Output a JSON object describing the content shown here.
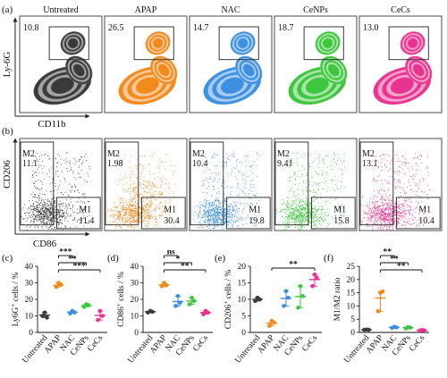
{
  "groups": [
    "Untreated",
    "APAP",
    "NAC",
    "CeNPs",
    "CeCs"
  ],
  "colors": {
    "Untreated": "#3a3a3a",
    "APAP": "#f28a1c",
    "NAC": "#3d8fe0",
    "CeNPs": "#3fc63f",
    "CeCs": "#e8338f"
  },
  "panel_a": {
    "label": "(a)",
    "y_axis_label": "Ly-6G",
    "x_axis_label": "CD11b",
    "gate_percent": [
      "10.8",
      "26.5",
      "14.7",
      "18.7",
      "13.0"
    ]
  },
  "panel_b": {
    "label": "(b)",
    "y_axis_label": "CD206",
    "x_axis_label": "CD86",
    "gate_m2_name": "M2",
    "gate_m1_name": "M1",
    "m2_values": [
      "11.1",
      "1.98",
      "10.4",
      "9.41",
      "13.1"
    ],
    "m1_values": [
      "11.4",
      "30.4",
      "19.8",
      "15.8",
      "10.4"
    ]
  },
  "chart_data": [
    {
      "type": "scatter",
      "panel": "(c)",
      "ylabel": "Ly6G+ cells / %",
      "ylim": [
        0,
        40
      ],
      "yticks": [
        "0",
        "10",
        "20",
        "30",
        "40"
      ],
      "categories": [
        "Untreated",
        "APAP",
        "NAC",
        "CeNPs",
        "CeCs"
      ],
      "points": [
        [
          10,
          12,
          9
        ],
        [
          27.5,
          30,
          29
        ],
        [
          11.5,
          13,
          12
        ],
        [
          15.5,
          17,
          16.5
        ],
        [
          7.5,
          13,
          10
        ]
      ],
      "means": [
        10.5,
        28.5,
        12.3,
        16.2,
        10.3
      ],
      "sig": [
        {
          "from": 1,
          "to": 2,
          "label": "***"
        },
        {
          "from": 1,
          "to": 3,
          "label": "**"
        },
        {
          "from": 1,
          "to": 4,
          "label": "***"
        }
      ]
    },
    {
      "type": "scatter",
      "panel": "(d)",
      "ylabel": "CD86+ cells / %",
      "ylim": [
        0,
        40
      ],
      "yticks": [
        "0",
        "10",
        "20",
        "30",
        "40"
      ],
      "categories": [
        "Untreated",
        "APAP",
        "NAC",
        "CeNPs",
        "CeCs"
      ],
      "points": [
        [
          12,
          13,
          12.5
        ],
        [
          28,
          30,
          28.5
        ],
        [
          16,
          22,
          18
        ],
        [
          17,
          21,
          19
        ],
        [
          11,
          13,
          12
        ]
      ],
      "means": [
        12.5,
        28.8,
        18.7,
        19,
        12
      ],
      "sig": [
        {
          "from": 1,
          "to": 2,
          "label": "ns"
        },
        {
          "from": 1,
          "to": 3,
          "label": "*"
        },
        {
          "from": 1,
          "to": 4,
          "label": "**"
        }
      ]
    },
    {
      "type": "scatter",
      "panel": "(e)",
      "ylabel": "CD206+ cells / %",
      "ylim": [
        0,
        20
      ],
      "yticks": [
        "0",
        "5",
        "10",
        "15",
        "20"
      ],
      "categories": [
        "Untreated",
        "APAP",
        "NAC",
        "CeNPs",
        "CeCs"
      ],
      "points": [
        [
          9.5,
          10.5,
          10
        ],
        [
          2,
          3.5,
          3
        ],
        [
          8,
          12.5,
          10.5
        ],
        [
          7.5,
          14,
          11
        ],
        [
          14,
          17.5,
          16.5
        ]
      ],
      "means": [
        10,
        2.8,
        10.3,
        10.8,
        16
      ],
      "sig": [
        {
          "from": 1,
          "to": 4,
          "label": "**"
        }
      ]
    },
    {
      "type": "scatter",
      "panel": "(f)",
      "ylabel": "M1/M2 ratio",
      "ylim": [
        0,
        25
      ],
      "yticks": [
        "0",
        "5",
        "10",
        "15",
        "20",
        "25"
      ],
      "categories": [
        "Untreated",
        "APAP",
        "NAC",
        "CeNPs",
        "CeCs"
      ],
      "points": [
        [
          1,
          1.1,
          1
        ],
        [
          8,
          15,
          15.5
        ],
        [
          1.7,
          2.1,
          1.9
        ],
        [
          1.5,
          2,
          1.8
        ],
        [
          0.7,
          0.9,
          0.8
        ]
      ],
      "means": [
        1,
        13,
        1.9,
        1.8,
        0.8
      ],
      "sig": [
        {
          "from": 1,
          "to": 2,
          "label": "**"
        },
        {
          "from": 1,
          "to": 3,
          "label": "**"
        },
        {
          "from": 1,
          "to": 4,
          "label": "**"
        }
      ]
    }
  ]
}
